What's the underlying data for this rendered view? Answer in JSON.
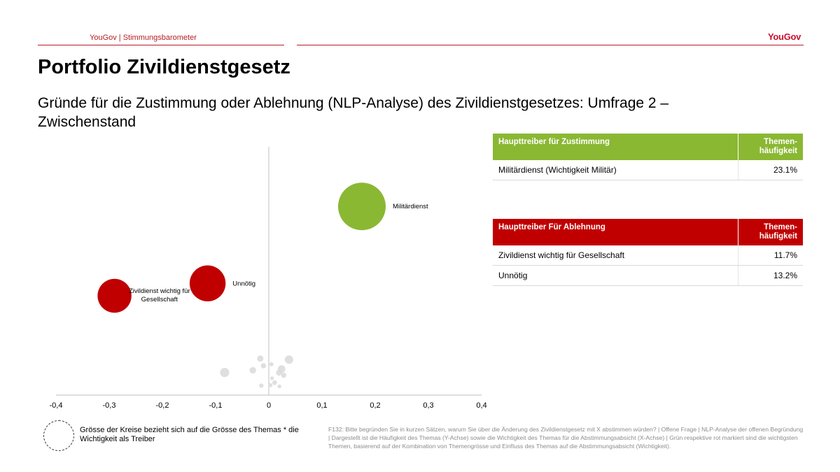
{
  "header": {
    "left_text": "YouGov | Stimmungsbarometer",
    "logo": "YouGov"
  },
  "title": "Portfolio Zivildienstgesetz",
  "subtitle": "Gründe für die Zustimmung oder Ablehnung (NLP-Analyse) des Zivildienstgesetzes: Umfrage 2 – Zwischenstand",
  "colors": {
    "green": "#8ab833",
    "red": "#c00000",
    "grey": "#d9d9d9",
    "brand": "#c8102e"
  },
  "chart_data": {
    "type": "scatter",
    "xlim": [
      -0.4,
      0.4
    ],
    "ylim": [
      0,
      1
    ],
    "x_ticks": [
      "-0,4",
      "-0,3",
      "-0,2",
      "-0,1",
      "0",
      "0,1",
      "0,2",
      "0,3",
      "0,4"
    ],
    "y_ticks": [],
    "xlabel": "",
    "ylabel": "",
    "grid": false,
    "highlighted": [
      {
        "label": "Militärdienst",
        "x": 0.175,
        "y": 0.76,
        "size": 23.1,
        "color": "#8ab833"
      },
      {
        "label": "Unnötig",
        "x": -0.115,
        "y": 0.45,
        "size": 13.2,
        "color": "#c00000"
      },
      {
        "label": "Zivildienst wichtig für Gesellschaft",
        "x": -0.29,
        "y": 0.4,
        "size": 11.7,
        "color": "#c00000"
      }
    ],
    "others": [
      {
        "x": -0.083,
        "y": 0.091,
        "size": 3.0
      },
      {
        "x": 0.038,
        "y": 0.143,
        "size": 2.5
      },
      {
        "x": -0.016,
        "y": 0.147,
        "size": 1.4
      },
      {
        "x": -0.03,
        "y": 0.1,
        "size": 1.5
      },
      {
        "x": -0.014,
        "y": 0.038,
        "size": 0.7
      },
      {
        "x": 0.024,
        "y": 0.105,
        "size": 2.0
      },
      {
        "x": 0.019,
        "y": 0.09,
        "size": 1.2
      },
      {
        "x": 0.028,
        "y": 0.08,
        "size": 1.0
      },
      {
        "x": -0.01,
        "y": 0.118,
        "size": 1.0
      },
      {
        "x": 0.005,
        "y": 0.124,
        "size": 0.6
      },
      {
        "x": 0.011,
        "y": 0.05,
        "size": 0.8
      },
      {
        "x": 0.003,
        "y": 0.04,
        "size": 0.6
      },
      {
        "x": 0.02,
        "y": 0.035,
        "size": 0.5
      },
      {
        "x": 0.006,
        "y": 0.068,
        "size": 0.5
      }
    ]
  },
  "table_zustimmung": {
    "header": "Haupttreiber für Zustimmung",
    "freq_header": "Themen-häufigkeit",
    "rows": [
      {
        "label": "Militärdienst (Wichtigkeit Militär)",
        "value": "23.1%"
      }
    ]
  },
  "table_ablehnung": {
    "header": "Haupttreiber Für Ablehnung",
    "freq_header": "Themen-häufigkeit",
    "rows": [
      {
        "label": "Zivildienst wichtig für Gesellschaft",
        "value": "11.7%"
      },
      {
        "label": "Unnötig",
        "value": "13.2%"
      }
    ]
  },
  "legend_text": "Grösse der Kreise bezieht sich auf die Grösse des Themas * die Wichtigkeit als Treiber",
  "footnote": "F132: Bitte begründen Sie in kurzen Sätzen, warum Sie über die Änderung des Zivildienstgesetz mit X abstimmen würden? | Offene Frage | NLP-Analyse der offenen Begründung | Dargestellt ist die Häufigkeit des Themas (Y-Achse) sowie die Wichtigkeit des Themas für die Abstimmungsabsicht (X-Achse) | Grün respektive rot markiert sind die wichtigsten Themen, basierend auf der Kombination von Themengrösse und Einfluss des Themas auf die Abstimmungsabsicht (Wichtigkeit)."
}
